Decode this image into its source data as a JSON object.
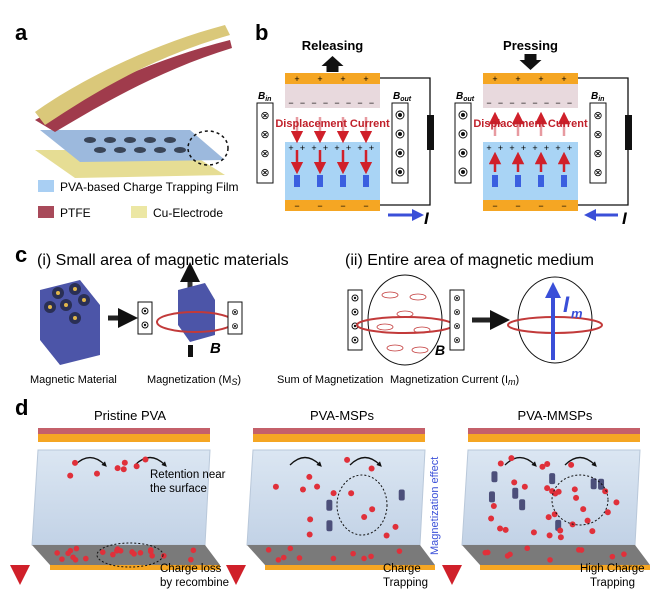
{
  "panels": {
    "a": "a",
    "b": "b",
    "c": "c",
    "d": "d"
  },
  "legend": {
    "items": [
      {
        "label": "PVA-based Charge Trapping Film",
        "color": "#a9cff3"
      },
      {
        "label": "PTFE",
        "color": "#a84a5a"
      },
      {
        "label": "Cu-Electrode",
        "color": "#ece7a4"
      }
    ]
  },
  "b": {
    "releasing": {
      "title": "Releasing",
      "left_field": "B",
      "left_sub": "in",
      "right_field": "B",
      "right_sub": "out",
      "current_label": "Displacement Current",
      "current_symbol": "I"
    },
    "pressing": {
      "title": "Pressing",
      "left_field": "B",
      "left_sub": "out",
      "right_field": "B",
      "right_sub": "in",
      "current_label": "Displacement Current",
      "current_symbol": "I"
    },
    "plus": "+",
    "minus": "−"
  },
  "c": {
    "title_i": "(i) Small area of magnetic materials",
    "title_ii": "(ii) Entire area of magnetic medium",
    "captions": [
      "Magnetic Material",
      "Magnetization (M",
      "S",
      ")",
      "Sum of Magnetization",
      "Magnetization Current (I",
      "m",
      ")"
    ],
    "b_symbol": "B",
    "im_symbol": "I",
    "im_sub": "m"
  },
  "d": {
    "titles": [
      "Pristine PVA",
      "PVA-MSPs",
      "PVA-MMSPs"
    ],
    "annotations": {
      "retention": [
        "Retention near",
        "the surface"
      ],
      "charge_loss": [
        "Charge loss",
        "by recombine"
      ],
      "charge_trapping": [
        "Charge",
        "Trapping"
      ],
      "high_trapping": [
        "High Charge",
        "Trapping"
      ],
      "magnetization_effect": "Magnetization effect"
    }
  },
  "colors": {
    "electrode": "#f5a623",
    "ptfe": "#e8d9dd",
    "pva": "#a9d4f5",
    "arrow_red": "#d0202a",
    "arrow_blue": "#3a4fd8",
    "magnet": "#4a4fa0"
  }
}
